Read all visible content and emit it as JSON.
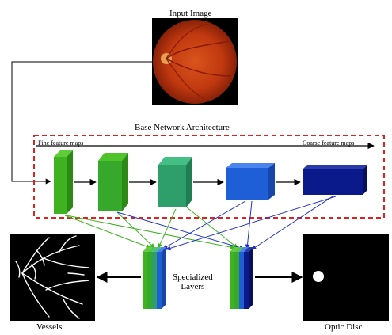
{
  "title": "Input   Image",
  "architecture_label": "Base Network Architecture",
  "fine_label": "Fine feature maps",
  "coarse_label": "Coarse feature maps",
  "specialized_label": [
    "Specialized",
    "Layers"
  ],
  "vessels_label": "Vessels",
  "disc_label": "Optic Disc",
  "colors": {
    "dashed_box": "#e0201f",
    "arrow": "#000000",
    "green_arrow": "#3fb31f",
    "blue_arrow": "#2233c8",
    "blocks": [
      "#3fb31f",
      "#36a82c",
      "#2e9e6a",
      "#1e5ed6",
      "#0a1a8a"
    ]
  }
}
